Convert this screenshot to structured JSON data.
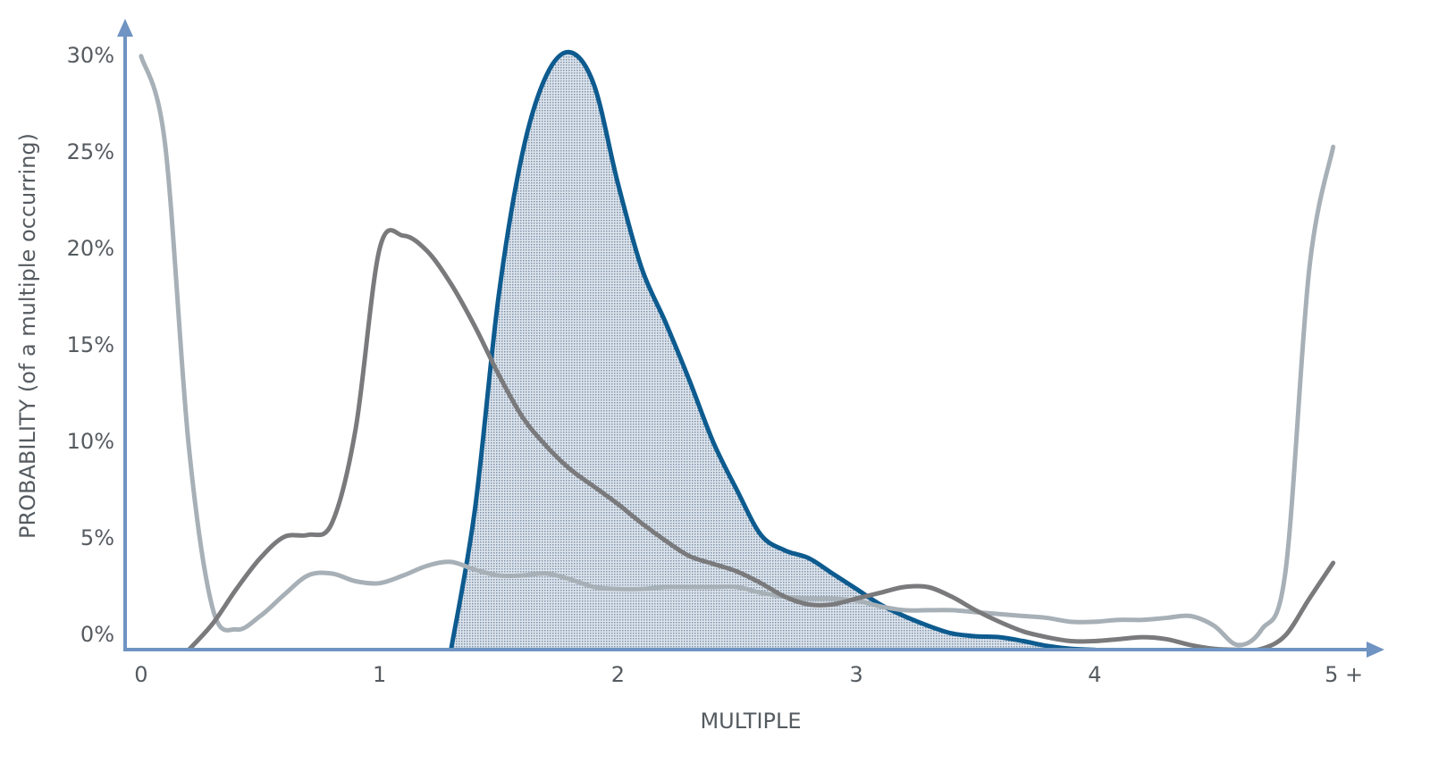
{
  "chart_data": {
    "type": "line",
    "x_label": "MULTIPLE",
    "y_label": "PROBABILITY (of a multiple occurring)",
    "x": [
      0,
      0.1,
      0.2,
      0.3,
      0.4,
      0.5,
      0.6,
      0.7,
      0.8,
      0.9,
      1,
      1.1,
      1.2,
      1.3,
      1.4,
      1.5,
      1.6,
      1.7,
      1.8,
      1.9,
      2,
      2.1,
      2.2,
      2.3,
      2.4,
      2.5,
      2.6,
      2.7,
      2.8,
      2.9,
      3,
      3.1,
      3.2,
      3.3,
      3.4,
      3.5,
      3.6,
      3.7,
      3.8,
      3.9,
      4,
      4.1,
      4.2,
      4.3,
      4.4,
      4.5,
      4.6,
      4.7,
      4.8,
      4.9,
      5
    ],
    "series": [
      {
        "color": "#0d5b8f",
        "fill": true,
        "values": [
          null,
          null,
          null,
          null,
          null,
          null,
          null,
          null,
          null,
          null,
          null,
          null,
          null,
          -0.75,
          6.5,
          17.6,
          25,
          29,
          30.2,
          28.5,
          23.4,
          19,
          16.2,
          13.2,
          10.0,
          7.5,
          5.2,
          4.4,
          4.0,
          3.2,
          2.4,
          1.6,
          1.0,
          0.5,
          0.1,
          -0.05,
          -0.1,
          -0.3,
          -0.55,
          -0.7,
          -0.75,
          null,
          null,
          null,
          null,
          null,
          null,
          null,
          null,
          null,
          null
        ]
      },
      {
        "color": "#a7b0b6",
        "values": [
          30,
          25.5,
          9.8,
          1.4,
          0.3,
          1.0,
          2.1,
          3.1,
          3.2,
          2.8,
          2.7,
          3.1,
          3.6,
          3.8,
          3.4,
          3.1,
          3.1,
          3.2,
          2.9,
          2.5,
          2.4,
          2.4,
          2.5,
          2.5,
          2.5,
          2.5,
          2.2,
          2.0,
          1.9,
          1.9,
          1.8,
          1.5,
          1.3,
          1.3,
          1.3,
          1.2,
          1.1,
          1.0,
          0.9,
          0.7,
          0.7,
          0.8,
          0.8,
          0.9,
          1.0,
          0.5,
          -0.5,
          0.3,
          3.3,
          19,
          25.3
        ]
      },
      {
        "color": "#7a7a7c",
        "values": [
          null,
          null,
          -0.75,
          0.6,
          2.4,
          4.0,
          5.1,
          5.2,
          5.8,
          10.7,
          20.0,
          20.7,
          19.9,
          18.2,
          16.0,
          13.5,
          11.3,
          9.8,
          8.6,
          7.7,
          6.8,
          5.8,
          4.9,
          4.1,
          3.7,
          3.3,
          2.7,
          2.0,
          1.6,
          1.6,
          1.9,
          2.2,
          2.5,
          2.5,
          2.0,
          1.3,
          0.7,
          0.2,
          -0.1,
          -0.3,
          -0.3,
          -0.2,
          -0.1,
          -0.2,
          -0.5,
          -0.7,
          -0.75,
          -0.7,
          0,
          1.9,
          3.75
        ]
      }
    ],
    "xlim": [
      -0.067,
      5.2
    ],
    "ylim": [
      -0.74,
      31.75
    ],
    "xticks": [
      0,
      1,
      2,
      3,
      4,
      {
        "value": 5,
        "label": "5 +"
      }
    ],
    "yticks": [
      {
        "value": 0,
        "label": "0%"
      },
      {
        "value": 5,
        "label": "5%"
      },
      {
        "value": 10,
        "label": "10%"
      },
      {
        "value": 15,
        "label": "15%"
      },
      {
        "value": 20,
        "label": "20%"
      },
      {
        "value": 25,
        "label": "25%"
      },
      {
        "value": 30,
        "label": "30%"
      }
    ],
    "axis_color": "#6f93c2"
  }
}
